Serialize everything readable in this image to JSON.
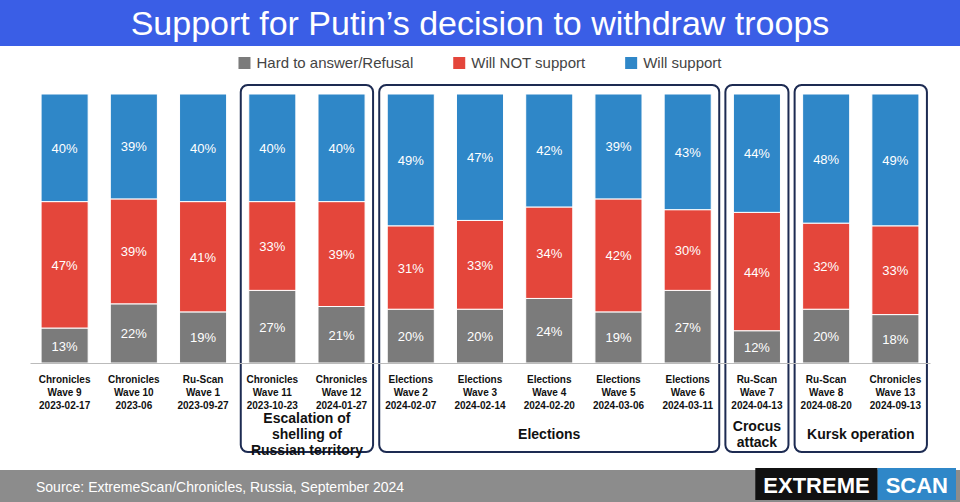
{
  "chart_data": {
    "type": "bar",
    "stacked": true,
    "data_labels": true,
    "tick_labels": "x",
    "legend": "top",
    "title": "Support for Putin’s decision to withdraw troops",
    "categories": [
      "Chronicles\nWave 9\n2023-02-17",
      "Chronicles\nWave 10\n2023-06",
      "Ru-Scan\nWave 1\n2023-09-27",
      "Chronicles\nWave 11\n2023-10-23",
      "Chronicles\nWave 12\n2024-01-27",
      "Elections\nWave 2\n2024-02-07",
      "Elections\nWave 3\n2024-02-14",
      "Elections\nWave 4\n2024-02-20",
      "Elections\nWave 5\n2024-03-06",
      "Elections\nWave 6\n2024-03-11",
      "Ru-Scan\nWave 7\n2024-04-13",
      "Ru-Scan\nWave 8\n2024-08-20",
      "Chronicles\nWave 13\n2024-09-13"
    ],
    "series": [
      {
        "name": "Hard to answer/Refusal",
        "color": "#7b7b7b",
        "values": [
          13,
          22,
          19,
          27,
          21,
          20,
          20,
          24,
          19,
          27,
          12,
          20,
          18
        ],
        "value_labels": [
          "13%",
          "22%",
          "19%",
          "27%",
          "21%",
          "20%",
          "20%",
          "24%",
          "19%",
          "27%",
          "12%",
          "20%",
          "18%"
        ]
      },
      {
        "name": "Will NOT support",
        "color": "#e4463b",
        "values": [
          47,
          39,
          41,
          33,
          39,
          31,
          33,
          34,
          42,
          30,
          44,
          32,
          33
        ],
        "value_labels": [
          "47%",
          "39%",
          "41%",
          "33%",
          "39%",
          "31%",
          "33%",
          "34%",
          "42%",
          "30%",
          "44%",
          "32%",
          "33%"
        ]
      },
      {
        "name": "Will support",
        "color": "#2f87c8",
        "values": [
          40,
          39,
          40,
          40,
          40,
          49,
          47,
          42,
          39,
          43,
          44,
          48,
          49
        ],
        "value_labels": [
          "40%",
          "39%",
          "40%",
          "40%",
          "40%",
          "49%",
          "47%",
          "42%",
          "39%",
          "43%",
          "44%",
          "48%",
          "49%"
        ]
      }
    ],
    "ylim": [
      0,
      100
    ],
    "annotations": [
      {
        "text": "Escalation of shelling of Russian territory",
        "from": "Chronicles\nWave 11\n2023-10-23",
        "to": "Chronicles\nWave 12\n2024-01-27"
      },
      {
        "text": "Elections",
        "from": "Elections\nWave 2\n2024-02-07",
        "to": "Elections\nWave 6\n2024-03-11"
      },
      {
        "text": "Crocus attack",
        "from": "Ru-Scan\nWave 7\n2024-04-13",
        "to": "Ru-Scan\nWave 7\n2024-04-13"
      },
      {
        "text": "Kursk operation",
        "from": "Ru-Scan\nWave 8\n2024-08-20",
        "to": "Chronicles\nWave 13\n2024-09-13"
      }
    ],
    "source": "Source: ExtremeScan/Chronicles, Russia, September 2024",
    "branding": [
      "EXTREME",
      "SCAN"
    ]
  }
}
